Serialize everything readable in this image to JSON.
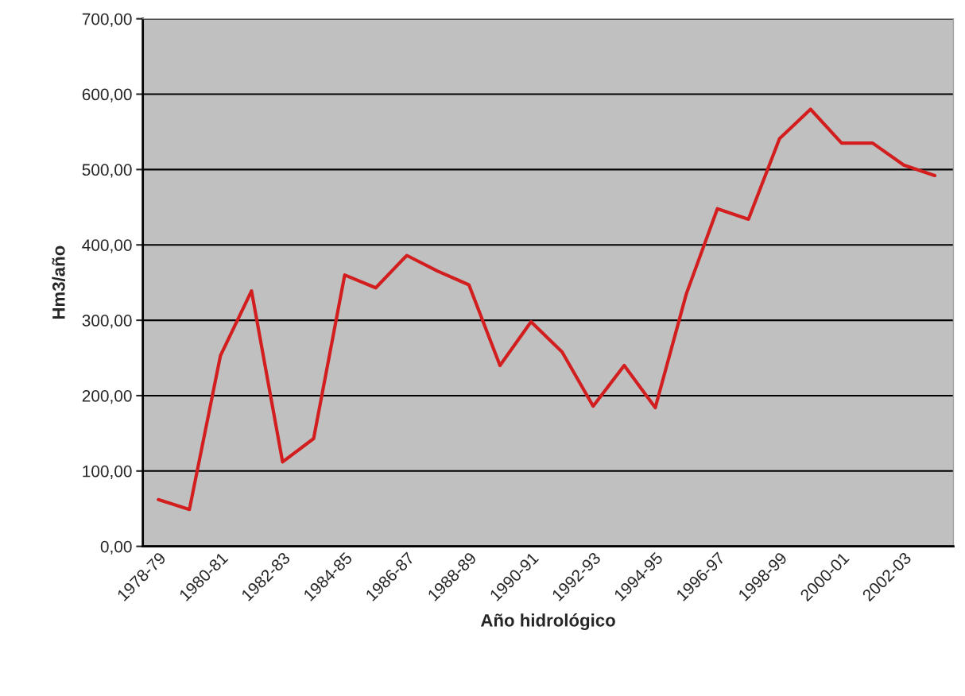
{
  "chart_data": {
    "type": "line",
    "xlabel": "Año hidrológico",
    "ylabel": "Hm3/año",
    "categories": [
      "1978-79",
      null,
      "1980-81",
      null,
      "1982-83",
      null,
      "1984-85",
      null,
      "1986-87",
      null,
      "1988-89",
      null,
      "1990-91",
      null,
      "1992-93",
      null,
      "1994-95",
      null,
      "1996-97",
      null,
      "1998-99",
      null,
      "2000-01",
      null,
      "2002-03",
      null
    ],
    "series": [
      {
        "color": "#d21e1e",
        "values": [
          62,
          49,
          253,
          339,
          112,
          143,
          360,
          343,
          386,
          365,
          347,
          240,
          298,
          258,
          186,
          240,
          184,
          335,
          448,
          434,
          541,
          580,
          535,
          535,
          506,
          492
        ]
      }
    ],
    "ylim": [
      0,
      700
    ],
    "yticks": [
      {
        "value": 0,
        "label": "0,00"
      },
      {
        "value": 100,
        "label": "100,00"
      },
      {
        "value": 200,
        "label": "200,00"
      },
      {
        "value": 300,
        "label": "300,00"
      },
      {
        "value": 400,
        "label": "400,00"
      },
      {
        "value": 500,
        "label": "500,00"
      },
      {
        "value": 600,
        "label": "600,00"
      },
      {
        "value": 700,
        "label": "700,00"
      }
    ],
    "grid": "y",
    "marker": "none",
    "line_style": "solid"
  }
}
